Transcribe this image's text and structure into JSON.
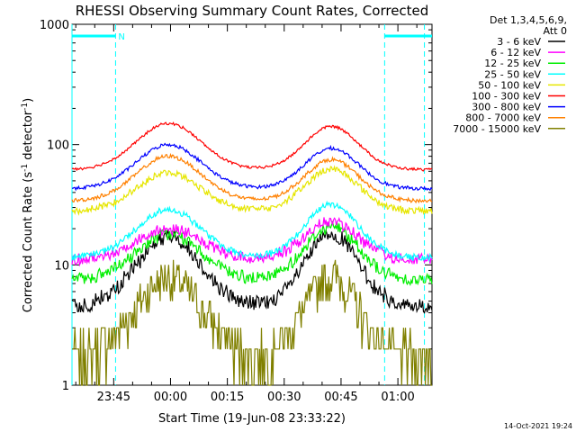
{
  "chart_data": {
    "type": "line",
    "title": "RHESSI Observing Summary Count Rates, Corrected",
    "ylabel_main": "Corrected Count Rate (s",
    "ylabel_sup1": "-1",
    "ylabel_mid": " detector",
    "ylabel_sup2": "-1",
    "ylabel_end": ")",
    "xlabel": "Start Time (19-Jun-08 23:33:22)",
    "yscale": "log",
    "ylim": [
      1,
      1000
    ],
    "xlim_minutes": [
      -26,
      69
    ],
    "y_ticks": [
      {
        "value": 1,
        "label": "1"
      },
      {
        "value": 10,
        "label": "10"
      },
      {
        "value": 100,
        "label": "100"
      },
      {
        "value": 1000,
        "label": "1000"
      }
    ],
    "x_ticks": [
      {
        "minute": -15,
        "label": "23:45"
      },
      {
        "minute": 0,
        "label": "00:00"
      },
      {
        "minute": 15,
        "label": "00:15"
      },
      {
        "minute": 30,
        "label": "00:30"
      },
      {
        "minute": 45,
        "label": "00:45"
      },
      {
        "minute": 60,
        "label": "01:00"
      }
    ],
    "legend_header": [
      "Det 1,3,4,5,6,9,",
      "Att 0"
    ],
    "series": [
      {
        "name": "3 - 6 keV",
        "color": "#000000",
        "base": 4.5,
        "peak1": 17,
        "peak2": 18,
        "noise": 0.12
      },
      {
        "name": "6 - 12 keV",
        "color": "#ff00ff",
        "base": 11,
        "peak1": 20,
        "peak2": 23,
        "noise": 0.09
      },
      {
        "name": "12 - 25 keV",
        "color": "#00ee00",
        "base": 7.5,
        "peak1": 18,
        "peak2": 21,
        "noise": 0.09
      },
      {
        "name": "25 - 50 keV",
        "color": "#00ffff",
        "base": 11.5,
        "peak1": 29,
        "peak2": 32,
        "noise": 0.05
      },
      {
        "name": "50 - 100 keV",
        "color": "#e6e600",
        "base": 28,
        "peak1": 58,
        "peak2": 63,
        "noise": 0.05
      },
      {
        "name": "100 - 300 keV",
        "color": "#ff0000",
        "base": 62,
        "peak1": 150,
        "peak2": 142,
        "noise": 0.02
      },
      {
        "name": "300 - 800 keV",
        "color": "#0000ff",
        "base": 43,
        "peak1": 100,
        "peak2": 93,
        "noise": 0.025
      },
      {
        "name": "800 - 7000 keV",
        "color": "#ff8000",
        "base": 34,
        "peak1": 80,
        "peak2": 75,
        "noise": 0.03
      },
      {
        "name": "7000 - 15000 keV",
        "color": "#808000",
        "base": 1.8,
        "peak1": 8,
        "peak2": 8,
        "noise": 0.0
      }
    ],
    "saa_bars": [
      {
        "start": -26,
        "end": -14.5,
        "level": 800,
        "label": "N"
      },
      {
        "start": 56.5,
        "end": 69,
        "level": 800,
        "label": ""
      }
    ],
    "night_boundaries": [
      -26,
      -14.5,
      56.5,
      67
    ]
  },
  "footer": {
    "timestamp": "14-Oct-2021 19:24"
  }
}
